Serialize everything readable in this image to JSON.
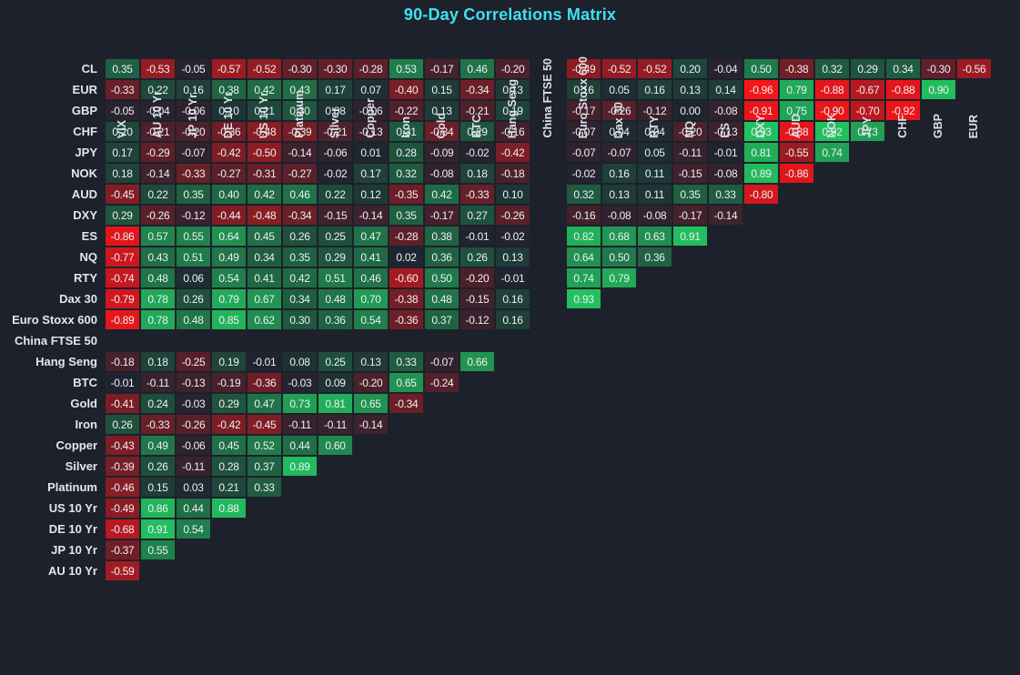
{
  "colors": {
    "background": "#1d212b",
    "cell_neutral": "#1e2430",
    "positive_extreme": "#22cd63",
    "negative_extreme": "#ff1418",
    "title_text": "#3ee0f0",
    "label_text": "#e3e7ec",
    "cell_text": "#eceff1"
  },
  "chart_data": {
    "type": "heatmap",
    "title": "90-Day Correlations Matrix",
    "legend_position": "none",
    "grid": false,
    "value_range": [
      -1,
      1
    ],
    "columns": [
      "VIX",
      "AU 10 Yr",
      "JP 10 Yr",
      "DE 10 Yr",
      "US 10 Yr",
      "Platinum",
      "Silver",
      "Copper",
      "Iron",
      "Gold",
      "BTC",
      "Hang Seng",
      "China FTSE 50",
      "Euro Stoxx 600",
      "Dax 30",
      "RTY",
      "NQ",
      "ES",
      "DXY",
      "AUD",
      "NOK",
      "JPY",
      "CHF",
      "GBP",
      "EUR"
    ],
    "rows": [
      {
        "label": "CL",
        "values": [
          0.35,
          -0.53,
          -0.05,
          -0.57,
          -0.52,
          -0.3,
          -0.3,
          -0.28,
          0.53,
          -0.17,
          0.46,
          -0.2,
          null,
          -0.49,
          -0.52,
          -0.52,
          0.2,
          -0.04,
          0.5,
          -0.38,
          0.32,
          0.29,
          0.34,
          -0.3,
          -0.56
        ]
      },
      {
        "label": "EUR",
        "values": [
          -0.33,
          0.22,
          0.16,
          0.38,
          0.42,
          0.43,
          0.17,
          0.07,
          -0.4,
          0.15,
          -0.34,
          0.13,
          null,
          0.16,
          0.05,
          0.16,
          0.13,
          0.14,
          -0.96,
          0.79,
          -0.88,
          -0.67,
          -0.88,
          0.9
        ]
      },
      {
        "label": "GBP",
        "values": [
          -0.05,
          -0.04,
          -0.06,
          0.1,
          0.21,
          0.3,
          0.08,
          -0.06,
          -0.22,
          0.13,
          -0.21,
          0.19,
          null,
          -0.17,
          -0.26,
          -0.12,
          0.0,
          -0.08,
          -0.91,
          0.75,
          -0.9,
          -0.7,
          -0.92
        ]
      },
      {
        "label": "CHF",
        "values": [
          0.2,
          -0.21,
          -0.2,
          -0.36,
          -0.48,
          -0.39,
          -0.21,
          -0.13,
          0.31,
          -0.34,
          0.29,
          -0.16,
          null,
          -0.07,
          0.04,
          0.04,
          -0.2,
          -0.13,
          0.93,
          -0.88,
          0.92,
          0.73
        ]
      },
      {
        "label": "JPY",
        "values": [
          0.17,
          -0.29,
          -0.07,
          -0.42,
          -0.5,
          -0.14,
          -0.06,
          0.01,
          0.28,
          -0.09,
          -0.02,
          -0.42,
          null,
          -0.07,
          -0.07,
          0.05,
          -0.11,
          -0.01,
          0.81,
          -0.55,
          0.74
        ]
      },
      {
        "label": "NOK",
        "values": [
          0.18,
          -0.14,
          -0.33,
          -0.27,
          -0.31,
          -0.27,
          -0.02,
          0.17,
          0.32,
          -0.08,
          0.18,
          -0.18,
          null,
          -0.02,
          0.16,
          0.11,
          -0.15,
          -0.08,
          0.89,
          -0.86
        ]
      },
      {
        "label": "AUD",
        "values": [
          -0.45,
          0.22,
          0.35,
          0.4,
          0.42,
          0.46,
          0.22,
          0.12,
          -0.35,
          0.42,
          -0.33,
          0.1,
          null,
          0.32,
          0.13,
          0.11,
          0.35,
          0.33,
          -0.8
        ]
      },
      {
        "label": "DXY",
        "values": [
          0.29,
          -0.26,
          -0.12,
          -0.44,
          -0.48,
          -0.34,
          -0.15,
          -0.14,
          0.35,
          -0.17,
          0.27,
          -0.26,
          null,
          -0.16,
          -0.08,
          -0.08,
          -0.17,
          -0.14
        ]
      },
      {
        "label": "ES",
        "values": [
          -0.86,
          0.57,
          0.55,
          0.64,
          0.45,
          0.26,
          0.25,
          0.47,
          -0.28,
          0.38,
          -0.01,
          -0.02,
          null,
          0.82,
          0.68,
          0.63,
          0.91
        ]
      },
      {
        "label": "NQ",
        "values": [
          -0.77,
          0.43,
          0.51,
          0.49,
          0.34,
          0.35,
          0.29,
          0.41,
          0.02,
          0.36,
          0.26,
          0.13,
          null,
          0.64,
          0.5,
          0.36
        ]
      },
      {
        "label": "RTY",
        "values": [
          -0.74,
          0.48,
          0.06,
          0.54,
          0.41,
          0.42,
          0.51,
          0.46,
          -0.6,
          0.5,
          -0.2,
          -0.01,
          null,
          0.74,
          0.79
        ]
      },
      {
        "label": "Dax 30",
        "values": [
          -0.79,
          0.78,
          0.26,
          0.79,
          0.67,
          0.34,
          0.48,
          0.7,
          -0.38,
          0.48,
          -0.15,
          0.16,
          null,
          0.93
        ]
      },
      {
        "label": "Euro Stoxx 600",
        "values": [
          -0.89,
          0.78,
          0.48,
          0.85,
          0.62,
          0.3,
          0.36,
          0.54,
          -0.36,
          0.37,
          -0.12,
          0.16
        ]
      },
      {
        "label": "China FTSE 50",
        "values": []
      },
      {
        "label": "Hang Seng",
        "values": [
          -0.18,
          0.18,
          -0.25,
          0.19,
          -0.01,
          0.08,
          0.25,
          0.13,
          0.33,
          -0.07,
          0.66
        ]
      },
      {
        "label": "BTC",
        "values": [
          -0.01,
          -0.11,
          -0.13,
          -0.19,
          -0.36,
          -0.03,
          0.09,
          -0.2,
          0.65,
          -0.24
        ]
      },
      {
        "label": "Gold",
        "values": [
          -0.41,
          0.24,
          -0.03,
          0.29,
          0.47,
          0.73,
          0.81,
          0.65,
          -0.34
        ]
      },
      {
        "label": "Iron",
        "values": [
          0.26,
          -0.33,
          -0.26,
          -0.42,
          -0.45,
          -0.11,
          -0.11,
          -0.14
        ]
      },
      {
        "label": "Copper",
        "values": [
          -0.43,
          0.49,
          -0.06,
          0.45,
          0.52,
          0.44,
          0.6
        ]
      },
      {
        "label": "Silver",
        "values": [
          -0.39,
          0.26,
          -0.11,
          0.28,
          0.37,
          0.89
        ]
      },
      {
        "label": "Platinum",
        "values": [
          -0.46,
          0.15,
          0.03,
          0.21,
          0.33
        ]
      },
      {
        "label": "US 10 Yr",
        "values": [
          -0.49,
          0.86,
          0.44,
          0.88
        ]
      },
      {
        "label": "DE 10 Yr",
        "values": [
          -0.68,
          0.91,
          0.54
        ]
      },
      {
        "label": "JP 10 Yr",
        "values": [
          -0.37,
          0.55
        ]
      },
      {
        "label": "AU 10 Yr",
        "values": [
          -0.59
        ]
      }
    ]
  }
}
